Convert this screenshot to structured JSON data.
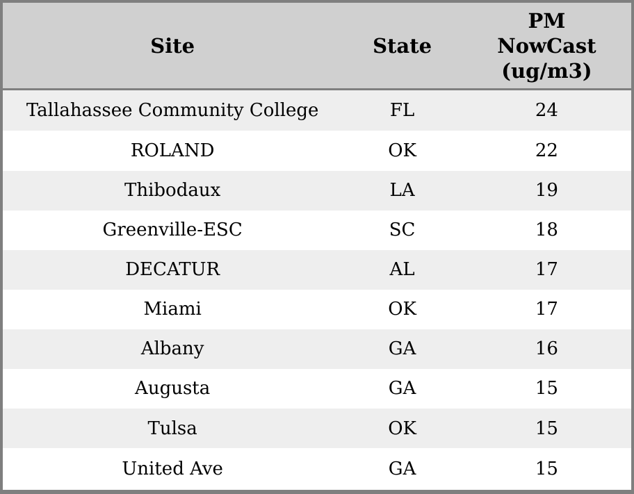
{
  "colors": {
    "header_bg": "#d0d0d0",
    "row_odd_bg": "#eeeeee",
    "row_even_bg": "#ffffff",
    "border": "#7f7f7f",
    "text": "#000000"
  },
  "table": {
    "header": {
      "site": "Site",
      "state": "State",
      "pm_lines": [
        "PM",
        "NowCast",
        "(ug/m3)"
      ]
    }
  },
  "chart_data": {
    "type": "table",
    "columns": [
      "Site",
      "State",
      "PM NowCast (ug/m3)"
    ],
    "rows": [
      [
        "Tallahassee Community College",
        "FL",
        24
      ],
      [
        "ROLAND",
        "OK",
        22
      ],
      [
        "Thibodaux",
        "LA",
        19
      ],
      [
        "Greenville-ESC",
        "SC",
        18
      ],
      [
        "DECATUR",
        "AL",
        17
      ],
      [
        "Miami",
        "OK",
        17
      ],
      [
        "Albany",
        "GA",
        16
      ],
      [
        "Augusta",
        "GA",
        15
      ],
      [
        "Tulsa",
        "OK",
        15
      ],
      [
        "United Ave",
        "GA",
        15
      ]
    ]
  }
}
